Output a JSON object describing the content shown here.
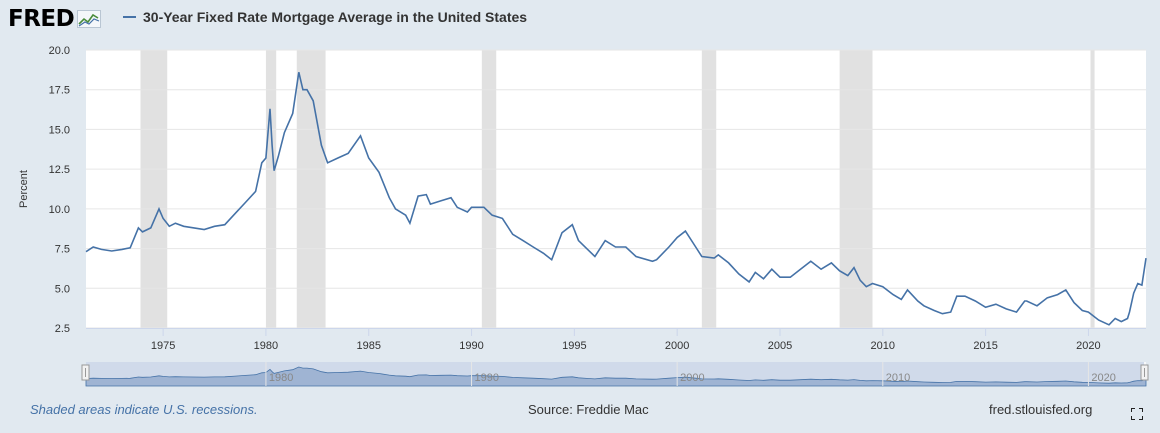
{
  "header": {
    "logo_text": "FRED",
    "title": "30-Year Fixed Rate Mortgage Average in the United States"
  },
  "footer": {
    "note": "Shaded areas indicate U.S. recessions.",
    "source": "Source: Freddie Mac",
    "site": "fred.stlouisfed.org"
  },
  "icons": {
    "fullscreen": "fullscreen-icon",
    "logo": "fred-sparkline-icon"
  },
  "colors": {
    "line": "#4572a7",
    "recession": "#e1e1e1",
    "navigator_fill": "#cbd6e8"
  },
  "chart_data": {
    "type": "line",
    "title": "30-Year Fixed Rate Mortgage Average in the United States",
    "ylabel": "Percent",
    "xlabel": "",
    "xlim": [
      1971.25,
      2022.8
    ],
    "ylim": [
      2.5,
      20.0
    ],
    "x_ticks": [
      1975,
      1980,
      1985,
      1990,
      1995,
      2000,
      2005,
      2010,
      2015,
      2020
    ],
    "y_ticks": [
      2.5,
      5.0,
      7.5,
      10.0,
      12.5,
      15.0,
      17.5,
      20.0
    ],
    "y_tick_labels": [
      "2.5",
      "5.0",
      "7.5",
      "10.0",
      "12.5",
      "15.0",
      "17.5",
      "20.0"
    ],
    "navigator_ticks": [
      "1980",
      "1990",
      "2000",
      "2010",
      "2020"
    ],
    "navigator_tick_years": [
      1980,
      1990,
      2000,
      2010,
      2020
    ],
    "grid": true,
    "recessions": [
      [
        1973.9,
        1975.2
      ],
      [
        1980.0,
        1980.5
      ],
      [
        1981.5,
        1982.9
      ],
      [
        1990.5,
        1991.2
      ],
      [
        2001.2,
        2001.9
      ],
      [
        2007.9,
        2009.5
      ],
      [
        2020.1,
        2020.3
      ]
    ],
    "series": [
      {
        "name": "30-Year Fixed Rate Mortgage Average in the United States",
        "x": [
          1971.25,
          1971.6,
          1972.0,
          1972.5,
          1973.0,
          1973.4,
          1973.8,
          1974.0,
          1974.4,
          1974.8,
          1975.0,
          1975.3,
          1975.6,
          1976.0,
          1976.5,
          1977.0,
          1977.5,
          1978.0,
          1978.5,
          1979.0,
          1979.5,
          1979.8,
          1980.0,
          1980.2,
          1980.3,
          1980.4,
          1980.6,
          1980.9,
          1981.3,
          1981.6,
          1981.8,
          1982.0,
          1982.3,
          1982.7,
          1983.0,
          1983.5,
          1984.0,
          1984.6,
          1985.0,
          1985.5,
          1986.0,
          1986.3,
          1986.8,
          1987.0,
          1987.4,
          1987.8,
          1988.0,
          1988.5,
          1989.0,
          1989.3,
          1989.8,
          1990.0,
          1990.6,
          1991.0,
          1991.5,
          1992.0,
          1992.5,
          1993.0,
          1993.5,
          1993.9,
          1994.4,
          1994.9,
          1995.2,
          1995.6,
          1996.0,
          1996.5,
          1997.0,
          1997.5,
          1998.0,
          1998.8,
          1999.0,
          1999.6,
          2000.0,
          2000.4,
          2000.9,
          2001.2,
          2001.8,
          2002.0,
          2002.5,
          2003.0,
          2003.5,
          2003.8,
          2004.2,
          2004.6,
          2005.0,
          2005.5,
          2006.0,
          2006.5,
          2007.0,
          2007.5,
          2007.9,
          2008.3,
          2008.6,
          2008.9,
          2009.2,
          2009.5,
          2010.0,
          2010.5,
          2010.9,
          2011.2,
          2011.7,
          2012.0,
          2012.5,
          2012.9,
          2013.3,
          2013.6,
          2014.0,
          2014.5,
          2015.0,
          2015.5,
          2016.0,
          2016.5,
          2016.9,
          2017.0,
          2017.5,
          2018.0,
          2018.5,
          2018.9,
          2019.3,
          2019.7,
          2020.0,
          2020.5,
          2021.0,
          2021.3,
          2021.6,
          2021.9,
          2022.0,
          2022.2,
          2022.4,
          2022.6,
          2022.8
        ],
        "values": [
          7.3,
          7.6,
          7.45,
          7.35,
          7.45,
          7.55,
          8.8,
          8.55,
          8.8,
          10.0,
          9.4,
          8.9,
          9.1,
          8.9,
          8.8,
          8.7,
          8.9,
          9.0,
          9.7,
          10.4,
          11.1,
          12.9,
          13.2,
          16.3,
          14.0,
          12.4,
          13.3,
          14.8,
          16.0,
          18.6,
          17.5,
          17.5,
          16.8,
          14.0,
          12.9,
          13.2,
          13.5,
          14.6,
          13.2,
          12.3,
          10.7,
          10.0,
          9.6,
          9.1,
          10.8,
          10.9,
          10.3,
          10.5,
          10.7,
          10.1,
          9.8,
          10.1,
          10.1,
          9.6,
          9.4,
          8.4,
          8.0,
          7.6,
          7.2,
          6.8,
          8.5,
          9.0,
          8.0,
          7.5,
          7.0,
          8.0,
          7.6,
          7.6,
          7.0,
          6.7,
          6.8,
          7.6,
          8.2,
          8.6,
          7.6,
          7.0,
          6.9,
          7.1,
          6.6,
          5.9,
          5.4,
          6.0,
          5.6,
          6.2,
          5.7,
          5.7,
          6.2,
          6.7,
          6.2,
          6.6,
          6.1,
          5.8,
          6.3,
          5.5,
          5.1,
          5.3,
          5.1,
          4.6,
          4.3,
          4.9,
          4.2,
          3.9,
          3.6,
          3.4,
          3.5,
          4.5,
          4.5,
          4.2,
          3.8,
          4.0,
          3.7,
          3.5,
          4.2,
          4.2,
          3.9,
          4.4,
          4.6,
          4.9,
          4.1,
          3.6,
          3.5,
          3.0,
          2.7,
          3.1,
          2.9,
          3.1,
          3.5,
          4.7,
          5.3,
          5.2,
          6.9
        ]
      }
    ]
  }
}
